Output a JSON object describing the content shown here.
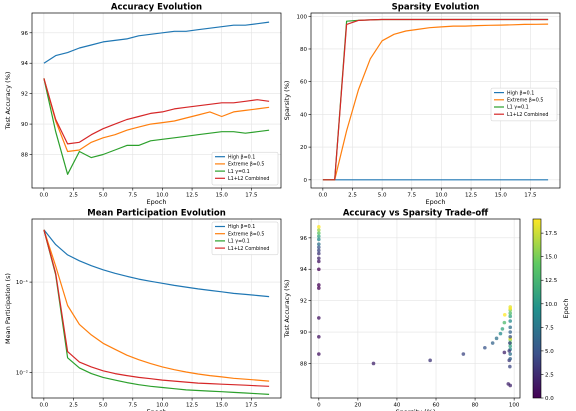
{
  "chart_data": [
    {
      "id": "acc",
      "type": "line",
      "title": "Accuracy Evolution",
      "xlabel": "Epoch",
      "ylabel": "Test Accuracy (%)",
      "xlim": [
        -1,
        20
      ],
      "ylim": [
        85.8,
        97.3
      ],
      "xticks": [
        0.0,
        2.5,
        5.0,
        7.5,
        10.0,
        12.5,
        15.0,
        17.5
      ],
      "xtick_labels": [
        "0.0",
        "2.5",
        "5.0",
        "7.5",
        "10.0",
        "12.5",
        "15.0",
        "17.5"
      ],
      "yticks": [
        88,
        90,
        92,
        94,
        96
      ],
      "ytick_labels": [
        "88",
        "90",
        "92",
        "94",
        "96"
      ],
      "grid": true,
      "legend_position": "lower-right",
      "x": [
        0,
        1,
        2,
        3,
        4,
        5,
        6,
        7,
        8,
        9,
        10,
        11,
        12,
        13,
        14,
        15,
        16,
        17,
        18,
        19
      ],
      "series": [
        {
          "name": "High β=0.1",
          "color": "#1f77b4",
          "values": [
            94.0,
            94.5,
            94.7,
            95.0,
            95.2,
            95.4,
            95.5,
            95.6,
            95.8,
            95.9,
            96.0,
            96.1,
            96.1,
            96.2,
            96.3,
            96.4,
            96.5,
            96.5,
            96.6,
            96.7
          ]
        },
        {
          "name": "Extreme β=0.5",
          "color": "#ff7f0e",
          "values": [
            93.0,
            90.2,
            88.2,
            88.3,
            88.8,
            89.1,
            89.3,
            89.6,
            89.8,
            90.0,
            90.1,
            90.2,
            90.4,
            90.6,
            90.8,
            90.5,
            90.8,
            90.9,
            91.0,
            91.1
          ]
        },
        {
          "name": "L1 γ=0.1",
          "color": "#2ca02c",
          "values": [
            93.0,
            89.5,
            86.7,
            88.2,
            87.8,
            88.0,
            88.3,
            88.6,
            88.6,
            88.9,
            89.0,
            89.1,
            89.2,
            89.3,
            89.4,
            89.5,
            89.5,
            89.4,
            89.5,
            89.6
          ]
        },
        {
          "name": "L1+L2 Combined",
          "color": "#d62728",
          "values": [
            93.0,
            90.3,
            88.7,
            88.8,
            89.3,
            89.7,
            90.0,
            90.3,
            90.5,
            90.7,
            90.8,
            91.0,
            91.1,
            91.2,
            91.3,
            91.4,
            91.4,
            91.5,
            91.6,
            91.5
          ]
        }
      ]
    },
    {
      "id": "spa",
      "type": "line",
      "title": "Sparsity Evolution",
      "xlabel": "Epoch",
      "ylabel": "Sparsity (%)",
      "xlim": [
        -1,
        20
      ],
      "ylim": [
        -5,
        102
      ],
      "xticks": [
        0.0,
        2.5,
        5.0,
        7.5,
        10.0,
        12.5,
        15.0,
        17.5
      ],
      "xtick_labels": [
        "0.0",
        "2.5",
        "5.0",
        "7.5",
        "10.0",
        "12.5",
        "15.0",
        "17.5"
      ],
      "yticks": [
        0,
        20,
        40,
        60,
        80,
        100
      ],
      "ytick_labels": [
        "0",
        "20",
        "40",
        "60",
        "80",
        "100"
      ],
      "grid": true,
      "legend_position": "center-right",
      "x": [
        0,
        1,
        2,
        3,
        4,
        5,
        6,
        7,
        8,
        9,
        10,
        11,
        12,
        13,
        14,
        15,
        16,
        17,
        18,
        19
      ],
      "series": [
        {
          "name": "High β=0.1",
          "color": "#1f77b4",
          "values": [
            0,
            0,
            0,
            0,
            0,
            0,
            0,
            0,
            0,
            0,
            0,
            0,
            0,
            0,
            0,
            0,
            0,
            0,
            0,
            0
          ]
        },
        {
          "name": "Extreme β=0.5",
          "color": "#ff7f0e",
          "values": [
            0,
            0,
            30,
            55,
            74,
            85,
            89,
            91,
            92,
            93,
            93.5,
            94,
            94,
            94.3,
            94.5,
            94.6,
            94.8,
            95,
            95.1,
            95.2
          ]
        },
        {
          "name": "L1 γ=0.1",
          "color": "#2ca02c",
          "values": [
            0,
            0,
            97,
            97.5,
            97.8,
            98,
            98,
            98,
            98,
            98,
            98,
            98,
            98,
            98,
            98,
            98,
            98,
            98,
            98,
            98
          ]
        },
        {
          "name": "L1+L2 Combined",
          "color": "#d62728",
          "values": [
            0,
            0,
            95,
            97.5,
            97.8,
            98,
            98,
            98,
            98,
            98,
            98,
            98,
            98,
            98,
            98,
            98,
            98,
            98,
            98,
            98
          ]
        }
      ]
    },
    {
      "id": "part",
      "type": "line",
      "title": "Mean Participation Evolution",
      "xlabel": "Epoch",
      "ylabel": "Mean Participation (s)",
      "yscale": "log",
      "xlim": [
        -1,
        20
      ],
      "ylim": [
        0.0052,
        0.5
      ],
      "xticks": [
        0.0,
        2.5,
        5.0,
        7.5,
        10.0,
        12.5,
        15.0,
        17.5
      ],
      "xtick_labels": [
        "0.0",
        "2.5",
        "5.0",
        "7.5",
        "10.0",
        "12.5",
        "15.0",
        "17.5"
      ],
      "yticks": [
        0.01,
        0.1
      ],
      "ytick_labels": [
        "10⁻²",
        "10⁻¹"
      ],
      "grid": true,
      "legend_position": "upper-right",
      "x": [
        0,
        1,
        2,
        3,
        4,
        5,
        6,
        7,
        8,
        9,
        10,
        11,
        12,
        13,
        14,
        15,
        16,
        17,
        18,
        19
      ],
      "series": [
        {
          "name": "High β=0.1",
          "color": "#1f77b4",
          "values": [
            0.38,
            0.26,
            0.2,
            0.172,
            0.152,
            0.137,
            0.125,
            0.116,
            0.108,
            0.102,
            0.097,
            0.092,
            0.088,
            0.084,
            0.081,
            0.078,
            0.075,
            0.073,
            0.071,
            0.069
          ]
        },
        {
          "name": "Extreme β=0.5",
          "color": "#ff7f0e",
          "values": [
            0.38,
            0.15,
            0.055,
            0.034,
            0.026,
            0.021,
            0.018,
            0.0155,
            0.0138,
            0.0125,
            0.0115,
            0.0107,
            0.0101,
            0.0096,
            0.0092,
            0.0089,
            0.0086,
            0.0084,
            0.0082,
            0.008
          ]
        },
        {
          "name": "L1 γ=0.1",
          "color": "#2ca02c",
          "values": [
            0.38,
            0.12,
            0.0145,
            0.0112,
            0.0097,
            0.0088,
            0.0082,
            0.0077,
            0.0073,
            0.007,
            0.0068,
            0.0066,
            0.0064,
            0.0063,
            0.0062,
            0.0061,
            0.006,
            0.0059,
            0.0058,
            0.0057
          ]
        },
        {
          "name": "L1+L2 Combined",
          "color": "#d62728",
          "values": [
            0.38,
            0.125,
            0.017,
            0.013,
            0.0115,
            0.0104,
            0.0097,
            0.0092,
            0.0088,
            0.0085,
            0.0082,
            0.008,
            0.0078,
            0.0076,
            0.0075,
            0.0074,
            0.0073,
            0.0072,
            0.0071,
            0.007
          ]
        }
      ]
    },
    {
      "id": "trade",
      "type": "scatter",
      "title": "Accuracy vs Sparsity Trade-off",
      "xlabel": "Sparsity (%)",
      "ylabel": "Test Accuracy (%)",
      "xlim": [
        -4,
        103
      ],
      "ylim": [
        85.8,
        97.2
      ],
      "xticks": [
        0,
        20,
        40,
        60,
        80,
        100
      ],
      "xtick_labels": [
        "0",
        "20",
        "40",
        "60",
        "80",
        "100"
      ],
      "yticks": [
        88,
        90,
        92,
        94,
        96
      ],
      "ytick_labels": [
        "88",
        "90",
        "92",
        "94",
        "96"
      ],
      "grid": true,
      "colorbar": {
        "label": "Epoch",
        "min": 0,
        "max": 19,
        "ticks": [
          0.0,
          2.5,
          5.0,
          7.5,
          10.0,
          12.5,
          15.0,
          17.5
        ],
        "tick_labels": [
          "0.0",
          "2.5",
          "5.0",
          "7.5",
          "10.0",
          "12.5",
          "15.0",
          "17.5"
        ]
      },
      "points": [
        {
          "x": 0,
          "y": 94.0,
          "epoch": 0
        },
        {
          "x": 0,
          "y": 94.5,
          "epoch": 1
        },
        {
          "x": 0,
          "y": 94.7,
          "epoch": 2
        },
        {
          "x": 0,
          "y": 95.0,
          "epoch": 3
        },
        {
          "x": 0,
          "y": 95.2,
          "epoch": 4
        },
        {
          "x": 0,
          "y": 95.4,
          "epoch": 5
        },
        {
          "x": 0,
          "y": 95.6,
          "epoch": 7
        },
        {
          "x": 0,
          "y": 95.9,
          "epoch": 9
        },
        {
          "x": 0,
          "y": 96.1,
          "epoch": 11
        },
        {
          "x": 0,
          "y": 96.3,
          "epoch": 14
        },
        {
          "x": 0,
          "y": 96.5,
          "epoch": 16
        },
        {
          "x": 0,
          "y": 96.7,
          "epoch": 19
        },
        {
          "x": 0,
          "y": 93.0,
          "epoch": 0
        },
        {
          "x": 0,
          "y": 92.8,
          "epoch": 0
        },
        {
          "x": 0,
          "y": 90.9,
          "epoch": 1
        },
        {
          "x": 0,
          "y": 89.7,
          "epoch": 1
        },
        {
          "x": 0,
          "y": 88.6,
          "epoch": 1
        },
        {
          "x": 28,
          "y": 88.0,
          "epoch": 2
        },
        {
          "x": 57,
          "y": 88.2,
          "epoch": 3
        },
        {
          "x": 74,
          "y": 88.6,
          "epoch": 4
        },
        {
          "x": 85,
          "y": 89.0,
          "epoch": 5
        },
        {
          "x": 89,
          "y": 89.3,
          "epoch": 6
        },
        {
          "x": 91,
          "y": 89.6,
          "epoch": 7
        },
        {
          "x": 93,
          "y": 89.9,
          "epoch": 9
        },
        {
          "x": 94,
          "y": 90.2,
          "epoch": 11
        },
        {
          "x": 95,
          "y": 90.6,
          "epoch": 13
        },
        {
          "x": 95.2,
          "y": 91.1,
          "epoch": 19
        },
        {
          "x": 97,
          "y": 86.7,
          "epoch": 2
        },
        {
          "x": 97.5,
          "y": 88.2,
          "epoch": 3
        },
        {
          "x": 97.8,
          "y": 87.8,
          "epoch": 4
        },
        {
          "x": 98,
          "y": 88.3,
          "epoch": 6
        },
        {
          "x": 98,
          "y": 88.6,
          "epoch": 7
        },
        {
          "x": 98,
          "y": 88.9,
          "epoch": 9
        },
        {
          "x": 98,
          "y": 89.1,
          "epoch": 11
        },
        {
          "x": 98,
          "y": 89.3,
          "epoch": 13
        },
        {
          "x": 98,
          "y": 89.5,
          "epoch": 15
        },
        {
          "x": 98,
          "y": 89.6,
          "epoch": 19
        },
        {
          "x": 95,
          "y": 88.7,
          "epoch": 2
        },
        {
          "x": 97.5,
          "y": 88.8,
          "epoch": 3
        },
        {
          "x": 97.8,
          "y": 89.3,
          "epoch": 4
        },
        {
          "x": 98,
          "y": 89.7,
          "epoch": 5
        },
        {
          "x": 98,
          "y": 90.0,
          "epoch": 6
        },
        {
          "x": 98,
          "y": 90.3,
          "epoch": 7
        },
        {
          "x": 98,
          "y": 90.7,
          "epoch": 9
        },
        {
          "x": 98,
          "y": 91.0,
          "epoch": 11
        },
        {
          "x": 98,
          "y": 91.2,
          "epoch": 13
        },
        {
          "x": 98,
          "y": 91.4,
          "epoch": 15
        },
        {
          "x": 98,
          "y": 91.6,
          "epoch": 18
        },
        {
          "x": 98,
          "y": 91.5,
          "epoch": 19
        },
        {
          "x": 98,
          "y": 86.6,
          "epoch": 2
        }
      ]
    }
  ]
}
